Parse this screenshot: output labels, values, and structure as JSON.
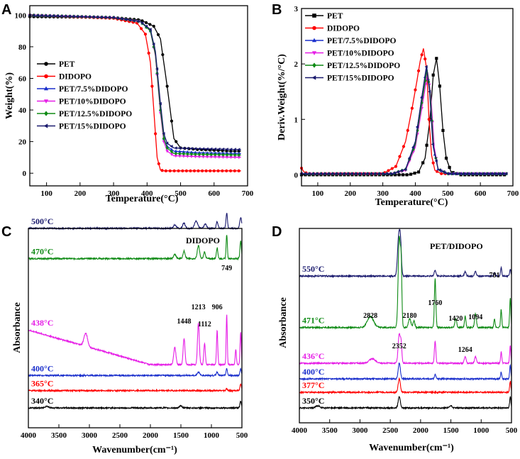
{
  "chart_data": [
    {
      "panel": "A",
      "type": "line",
      "title": "",
      "xlabel": "Temperature(°C)",
      "ylabel": "Weight(%)",
      "xlim": [
        50,
        700
      ],
      "ylim": [
        -8,
        106
      ],
      "xticks": [
        "100",
        "200",
        "300",
        "400",
        "500",
        "600",
        "700"
      ],
      "yticks": [
        "0",
        "20",
        "40",
        "60",
        "80",
        "100"
      ],
      "legend_position": "center-left",
      "series": [
        {
          "name": "PET",
          "color": "#000000",
          "marker": "circle",
          "x": [
            50,
            300,
            380,
            420,
            440,
            460,
            480,
            500,
            550,
            600,
            650,
            680
          ],
          "y": [
            99,
            98.5,
            97,
            93,
            85,
            55,
            22,
            16,
            15,
            14.5,
            14,
            14
          ]
        },
        {
          "name": "DIDOPO",
          "color": "#ff0000",
          "marker": "circle",
          "x": [
            50,
            300,
            370,
            395,
            410,
            420,
            430,
            440,
            450,
            500,
            600,
            680
          ],
          "y": [
            100,
            98,
            95,
            88,
            70,
            40,
            10,
            2,
            1.5,
            1.5,
            1.5,
            1.5
          ]
        },
        {
          "name": "PET/7.5%DIDOPO",
          "color": "#1a2fcc",
          "marker": "triangle",
          "x": [
            50,
            300,
            380,
            410,
            425,
            440,
            450,
            460,
            480,
            550,
            680
          ],
          "y": [
            100,
            98.5,
            96,
            90,
            75,
            40,
            22,
            17,
            14,
            13,
            12.5
          ]
        },
        {
          "name": "PET/10%DIDOPO",
          "color": "#e61ee6",
          "marker": "triangle-down",
          "x": [
            50,
            300,
            380,
            410,
            425,
            440,
            450,
            460,
            480,
            550,
            680
          ],
          "y": [
            100,
            98.5,
            96,
            90,
            74,
            38,
            20,
            14,
            11,
            10.5,
            10
          ]
        },
        {
          "name": "PET/12.5%DIDOPO",
          "color": "#0e8a14",
          "marker": "diamond",
          "x": [
            50,
            300,
            380,
            410,
            425,
            440,
            450,
            460,
            480,
            550,
            680
          ],
          "y": [
            100,
            98.5,
            96,
            90,
            75,
            40,
            22,
            16,
            12.5,
            12,
            11.5
          ]
        },
        {
          "name": "PET/15%DIDOPO",
          "color": "#1a1a6e",
          "marker": "left-triangle",
          "x": [
            50,
            300,
            380,
            410,
            425,
            440,
            450,
            460,
            480,
            550,
            680
          ],
          "y": [
            100,
            98.5,
            96,
            91,
            77,
            44,
            25,
            19,
            16,
            15.5,
            15
          ]
        }
      ]
    },
    {
      "panel": "B",
      "type": "line",
      "title": "",
      "xlabel": "Temperature(°C)",
      "ylabel": "Deriv.Weight(%/°C)",
      "xlim": [
        50,
        700
      ],
      "ylim": [
        -0.2,
        3
      ],
      "xticks": [
        "100",
        "200",
        "300",
        "400",
        "500",
        "600",
        "700"
      ],
      "yticks": [
        "0",
        "1",
        "2",
        "3"
      ],
      "legend_position": "top-left",
      "series": [
        {
          "name": "PET",
          "color": "#000000",
          "marker": "square",
          "x": [
            50,
            380,
            410,
            430,
            445,
            455,
            465,
            475,
            485,
            495,
            510,
            540,
            680
          ],
          "y": [
            0,
            0,
            0.05,
            0.3,
            1.0,
            1.8,
            2.1,
            1.6,
            0.8,
            0.3,
            0.05,
            0,
            0
          ]
        },
        {
          "name": "DIDOPO",
          "color": "#ff0000",
          "marker": "circle",
          "x": [
            50,
            58,
            70,
            300,
            340,
            370,
            390,
            405,
            415,
            425,
            435,
            442,
            450,
            460,
            480,
            680
          ],
          "y": [
            0.12,
            0.05,
            0.02,
            0.02,
            0.15,
            0.6,
            1.2,
            1.7,
            2.05,
            2.28,
            1.9,
            1.0,
            0.35,
            0.08,
            0.02,
            0.02
          ]
        },
        {
          "name": "PET/7.5%DIDOPO",
          "color": "#1a2fcc",
          "marker": "triangle",
          "x": [
            50,
            330,
            370,
            400,
            420,
            435,
            445,
            455,
            470,
            500,
            680
          ],
          "y": [
            0.02,
            0.02,
            0.1,
            0.6,
            1.4,
            1.95,
            1.5,
            0.5,
            0.1,
            0.02,
            0.02
          ]
        },
        {
          "name": "PET/10%DIDOPO",
          "color": "#e61ee6",
          "marker": "triangle-down",
          "x": [
            50,
            330,
            370,
            400,
            420,
            438,
            448,
            458,
            470,
            500,
            680
          ],
          "y": [
            0.02,
            0.02,
            0.08,
            0.5,
            1.2,
            1.85,
            1.4,
            0.5,
            0.1,
            0.02,
            0.02
          ]
        },
        {
          "name": "PET/12.5%DIDOPO",
          "color": "#0e8a14",
          "marker": "diamond",
          "x": [
            50,
            330,
            370,
            400,
            420,
            436,
            446,
            456,
            470,
            500,
            680
          ],
          "y": [
            0.02,
            0.02,
            0.1,
            0.55,
            1.3,
            1.9,
            1.45,
            0.5,
            0.1,
            0.02,
            0.02
          ]
        },
        {
          "name": "PET/15%DIDOPO",
          "color": "#1a1a6e",
          "marker": "left-triangle",
          "x": [
            50,
            330,
            370,
            400,
            420,
            434,
            444,
            454,
            470,
            500,
            680
          ],
          "y": [
            0.02,
            0.02,
            0.1,
            0.6,
            1.4,
            1.95,
            1.5,
            0.55,
            0.1,
            0.02,
            0.02
          ]
        }
      ]
    },
    {
      "panel": "C",
      "type": "line",
      "title": "DIDOPO",
      "xlabel": "Wavenumber(cm⁻¹)",
      "ylabel": "Absorbance",
      "xlim": [
        4000,
        500
      ],
      "xticks": [
        "4000",
        "3500",
        "3000",
        "2500",
        "2000",
        "1500",
        "1000",
        "500"
      ],
      "traces": [
        {
          "label": "500°C",
          "color": "#1a1a6e",
          "offset": 8.3,
          "peaks": [
            [
              1600,
              0.15,
              25
            ],
            [
              1450,
              0.25,
              20
            ],
            [
              1250,
              0.35,
              25
            ],
            [
              1100,
              0.2,
              20
            ],
            [
              906,
              0.3,
              15
            ],
            [
              749,
              0.7,
              12
            ],
            [
              520,
              0.5,
              15
            ]
          ]
        },
        {
          "label": "470°C",
          "color": "#0e8a14",
          "offset": 6.9,
          "peaks": [
            [
              1600,
              0.2,
              20
            ],
            [
              1448,
              0.35,
              18
            ],
            [
              1213,
              0.6,
              18
            ],
            [
              1112,
              0.3,
              15
            ],
            [
              906,
              0.5,
              12
            ],
            [
              749,
              1.1,
              10
            ],
            [
              520,
              0.8,
              12
            ]
          ]
        },
        {
          "label": "438°C",
          "color": "#e61ee6",
          "baseline": [
            4000,
            3.6,
            2000,
            2.0
          ],
          "peaks": [
            [
              3060,
              0.6,
              30
            ],
            [
              1600,
              0.8,
              18
            ],
            [
              1448,
              1.2,
              15
            ],
            [
              1213,
              1.9,
              15
            ],
            [
              1112,
              1.0,
              12
            ],
            [
              906,
              1.6,
              10
            ],
            [
              749,
              2.3,
              9
            ],
            [
              600,
              0.7,
              10
            ],
            [
              520,
              1.5,
              10
            ]
          ]
        },
        {
          "label": "400°C",
          "color": "#1a2fcc",
          "offset": 1.5,
          "peaks": [
            [
              1213,
              0.15,
              20
            ],
            [
              906,
              0.15,
              15
            ],
            [
              749,
              0.3,
              12
            ],
            [
              520,
              0.3,
              12
            ]
          ]
        },
        {
          "label": "365°C",
          "color": "#ff0000",
          "offset": 0.8,
          "peaks": [
            [
              749,
              0.1,
              12
            ],
            [
              520,
              0.3,
              12
            ]
          ]
        },
        {
          "label": "340°C",
          "color": "#000000",
          "offset": 0,
          "peaks": [
            [
              3700,
              0.08,
              30
            ],
            [
              1500,
              0.1,
              20
            ],
            [
              520,
              0.3,
              12
            ]
          ]
        }
      ],
      "annotations": [
        {
          "text": "749",
          "x": 749
        },
        {
          "text": "1213",
          "x": 1213
        },
        {
          "text": "906",
          "x": 906
        },
        {
          "text": "1448",
          "x": 1448
        },
        {
          "text": "1112",
          "x": 1112
        }
      ]
    },
    {
      "panel": "D",
      "type": "line",
      "title": "PET/DIDOPO",
      "xlabel": "Wavenumber(cm⁻¹)",
      "ylabel": "Absorbance",
      "xlim": [
        4000,
        500
      ],
      "xticks": [
        "4000",
        "3500",
        "3000",
        "2500",
        "2000",
        "1500",
        "1000",
        "500"
      ],
      "traces": [
        {
          "label": "550°C",
          "color": "#1a1a6e",
          "offset": 5.9,
          "peaks": [
            [
              2360,
              1.8,
              20
            ],
            [
              2330,
              1.2,
              15
            ],
            [
              1760,
              0.25,
              15
            ],
            [
              1264,
              0.2,
              15
            ],
            [
              1094,
              0.2,
              15
            ],
            [
              781,
              0.15,
              12
            ],
            [
              670,
              0.4,
              10
            ],
            [
              520,
              0.3,
              10
            ]
          ]
        },
        {
          "label": "471°C",
          "color": "#0e8a14",
          "offset": 3.6,
          "peaks": [
            [
              2828,
              0.5,
              50
            ],
            [
              2352,
              4.0,
              18
            ],
            [
              2320,
              2.5,
              12
            ],
            [
              2180,
              0.4,
              20
            ],
            [
              2110,
              0.3,
              15
            ],
            [
              1760,
              2.2,
              12
            ],
            [
              1420,
              0.4,
              15
            ],
            [
              1264,
              0.5,
              12
            ],
            [
              1094,
              0.6,
              15
            ],
            [
              781,
              0.4,
              10
            ],
            [
              670,
              0.8,
              10
            ],
            [
              520,
              1.3,
              10
            ]
          ]
        },
        {
          "label": "436°C",
          "color": "#e61ee6",
          "offset": 2.0,
          "peaks": [
            [
              2800,
              0.2,
              50
            ],
            [
              2352,
              1.3,
              18
            ],
            [
              2320,
              0.8,
              12
            ],
            [
              1760,
              1.0,
              12
            ],
            [
              1264,
              0.3,
              15
            ],
            [
              1094,
              0.3,
              15
            ],
            [
              670,
              0.5,
              10
            ],
            [
              520,
              0.8,
              10
            ]
          ]
        },
        {
          "label": "400°C",
          "color": "#1a2fcc",
          "offset": 1.3,
          "peaks": [
            [
              2352,
              0.7,
              18
            ],
            [
              1760,
              0.2,
              12
            ],
            [
              670,
              0.3,
              10
            ],
            [
              520,
              0.6,
              10
            ]
          ]
        },
        {
          "label": "377°C",
          "color": "#ff0000",
          "offset": 0.7,
          "peaks": [
            [
              2352,
              0.6,
              18
            ],
            [
              520,
              0.5,
              10
            ]
          ]
        },
        {
          "label": "350°C",
          "color": "#000000",
          "offset": 0,
          "peaks": [
            [
              3700,
              0.1,
              30
            ],
            [
              2352,
              0.5,
              18
            ],
            [
              1500,
              0.1,
              20
            ],
            [
              520,
              0.5,
              10
            ]
          ]
        }
      ],
      "annotations": [
        {
          "text": "781",
          "x": 781
        },
        {
          "text": "2828",
          "x": 2828
        },
        {
          "text": "2180",
          "x": 2180
        },
        {
          "text": "1420",
          "x": 1420
        },
        {
          "text": "1094",
          "x": 1094
        },
        {
          "text": "1760",
          "x": 1760
        },
        {
          "text": "2352",
          "x": 2352
        },
        {
          "text": "1264",
          "x": 1264
        }
      ]
    }
  ]
}
